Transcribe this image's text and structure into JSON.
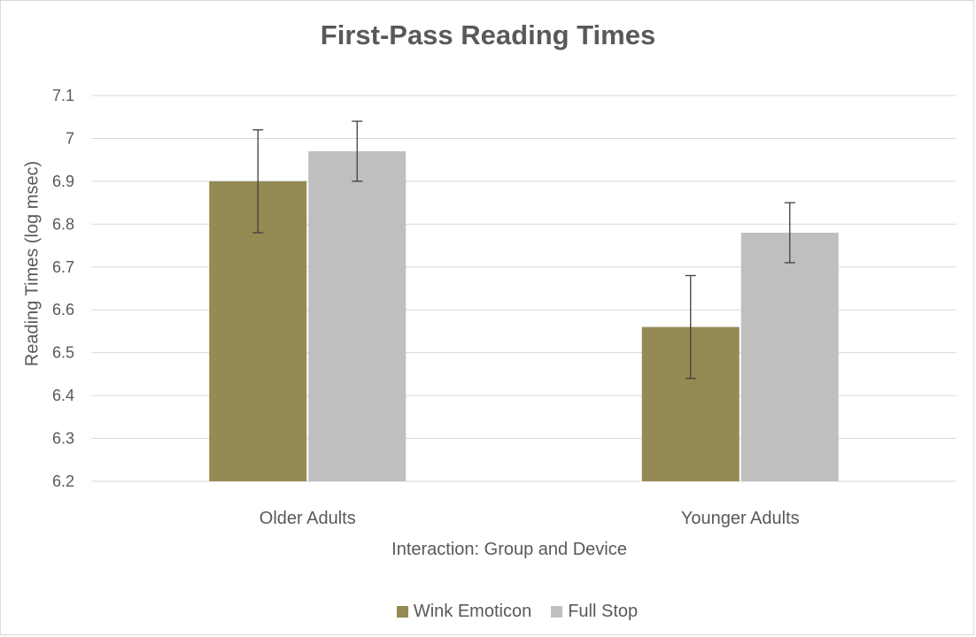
{
  "chart_data": {
    "type": "bar",
    "title": "First-Pass Reading Times",
    "xlabel": "Interaction: Group and Device",
    "ylabel": "Reading Times (log msec)",
    "categories": [
      "Older Adults",
      "Younger Adults"
    ],
    "ylim": [
      6.2,
      7.1
    ],
    "yticks": [
      "6.2",
      "6.3",
      "6.4",
      "6.5",
      "6.6",
      "6.7",
      "6.8",
      "6.9",
      "7",
      "7.1"
    ],
    "ytick_values": [
      6.2,
      6.3,
      6.4,
      6.5,
      6.6,
      6.7,
      6.8,
      6.9,
      7.0,
      7.1
    ],
    "grid": true,
    "legend_position": "bottom",
    "series": [
      {
        "name": "Wink Emoticon",
        "color": "#948a54",
        "values": [
          6.9,
          6.56
        ],
        "error_low": [
          6.78,
          6.44
        ],
        "error_high": [
          7.02,
          6.68
        ]
      },
      {
        "name": "Full Stop",
        "color": "#bfbfbf",
        "values": [
          6.97,
          6.78
        ],
        "error_low": [
          6.9,
          6.71
        ],
        "error_high": [
          7.04,
          6.85
        ]
      }
    ]
  }
}
